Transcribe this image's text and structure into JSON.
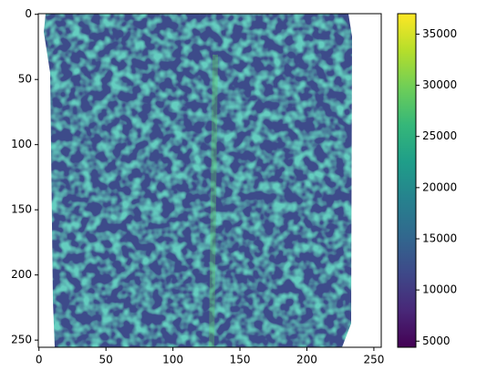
{
  "chart_data": {
    "type": "image",
    "xlim": [
      -0.5,
      255.5
    ],
    "ylim": [
      255.5,
      -0.5
    ],
    "xticks": [
      0,
      50,
      100,
      150,
      200,
      250
    ],
    "yticks": [
      0,
      50,
      100,
      150,
      200,
      250
    ],
    "colorbar": {
      "colormap": "viridis",
      "lim": [
        4400,
        37000
      ],
      "ticks": [
        5000,
        10000,
        15000,
        20000,
        25000,
        30000,
        35000
      ]
    }
  }
}
